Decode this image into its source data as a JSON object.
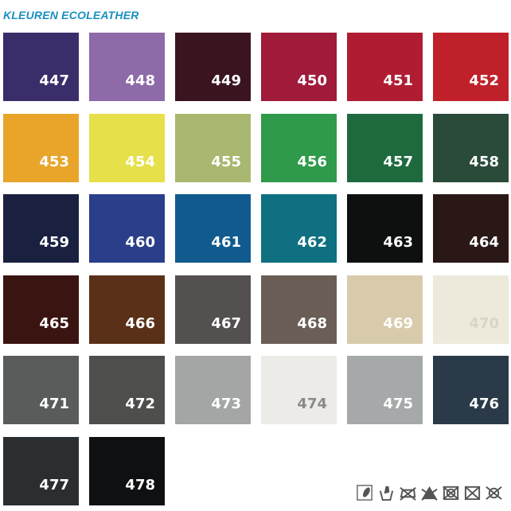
{
  "title": "KLEUREN ECOLEATHER",
  "swatches": [
    {
      "code": "447",
      "color": "#3a2d6a"
    },
    {
      "code": "448",
      "color": "#8e6aa8"
    },
    {
      "code": "449",
      "color": "#3a1520"
    },
    {
      "code": "450",
      "color": "#a01a3a"
    },
    {
      "code": "451",
      "color": "#b01c32"
    },
    {
      "code": "452",
      "color": "#c0202a"
    },
    {
      "code": "453",
      "color": "#e8a52a"
    },
    {
      "code": "454",
      "color": "#e6e04a"
    },
    {
      "code": "455",
      "color": "#a9b870"
    },
    {
      "code": "456",
      "color": "#2e9a4a"
    },
    {
      "code": "457",
      "color": "#1e6a3e"
    },
    {
      "code": "458",
      "color": "#2a4a3a"
    },
    {
      "code": "459",
      "color": "#1a2040"
    },
    {
      "code": "460",
      "color": "#2a3e8a"
    },
    {
      "code": "461",
      "color": "#105a8e"
    },
    {
      "code": "462",
      "color": "#0e7080"
    },
    {
      "code": "463",
      "color": "#0e1010"
    },
    {
      "code": "464",
      "color": "#2a1816"
    },
    {
      "code": "465",
      "color": "#3a1410"
    },
    {
      "code": "466",
      "color": "#5a3018"
    },
    {
      "code": "467",
      "color": "#555050"
    },
    {
      "code": "468",
      "color": "#6a5e56"
    },
    {
      "code": "469",
      "color": "#d8cbac"
    },
    {
      "code": "470",
      "color": "#eeeadb",
      "label_color": "#d8d4c6"
    },
    {
      "code": "471",
      "color": "#5a5c5c"
    },
    {
      "code": "472",
      "color": "#4e4e4c"
    },
    {
      "code": "473",
      "color": "#a4a6a6"
    },
    {
      "code": "474",
      "color": "#ecebe8",
      "label_color": "#8a8a8a"
    },
    {
      "code": "475",
      "color": "#a6a9aa"
    },
    {
      "code": "476",
      "color": "#2a3a48"
    },
    {
      "code": "477",
      "color": "#2a2e30"
    },
    {
      "code": "478",
      "color": "#0e1012"
    }
  ],
  "care_icons": [
    "abrasion-icon",
    "hand-wash-icon",
    "no-ironing-icon",
    "no-bleach-icon",
    "no-tumble-dry-icon",
    "no-dry-clean-icon",
    "no-wash-icon"
  ]
}
